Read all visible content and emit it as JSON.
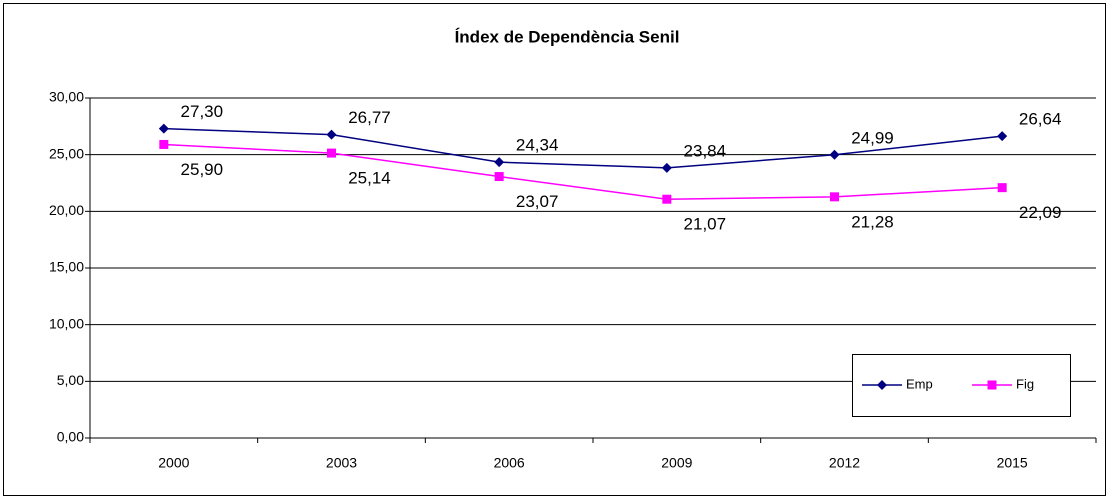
{
  "chart_data": {
    "type": "line",
    "title": "Índex de Dependència Senil",
    "categories": [
      "2000",
      "2003",
      "2006",
      "2009",
      "2012",
      "2015"
    ],
    "series": [
      {
        "name": "Emp",
        "color": "#000080",
        "marker": "diamond",
        "values": [
          27.3,
          26.77,
          24.34,
          23.84,
          24.99,
          26.64
        ],
        "value_labels": [
          "27,30",
          "26,77",
          "24,34",
          "23,84",
          "24,99",
          "26,64"
        ]
      },
      {
        "name": "Fig",
        "color": "#ff00ff",
        "marker": "square",
        "values": [
          25.9,
          25.14,
          23.07,
          21.07,
          21.28,
          22.09
        ],
        "value_labels": [
          "25,90",
          "25,14",
          "23,07",
          "21,07",
          "21,28",
          "22,09"
        ]
      }
    ],
    "ylim": [
      0,
      30
    ],
    "yticks": [
      {
        "value": 0,
        "label": "0,00"
      },
      {
        "value": 5,
        "label": "5,00"
      },
      {
        "value": 10,
        "label": "10,00"
      },
      {
        "value": 15,
        "label": "15,00"
      },
      {
        "value": 20,
        "label": "20,00"
      },
      {
        "value": 25,
        "label": "25,00"
      },
      {
        "value": 30,
        "label": "30,00"
      }
    ],
    "grid": true,
    "legend": "lower right"
  }
}
